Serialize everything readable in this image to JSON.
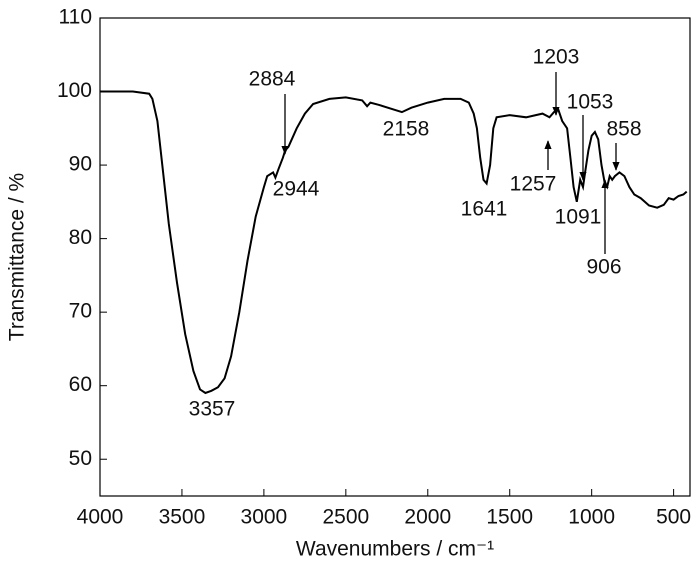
{
  "chart_data": {
    "type": "line",
    "x_label": "Wavenumbers / cm⁻¹",
    "y_label": "Transmittance / %",
    "xlim": [
      4000,
      400
    ],
    "ylim": [
      45,
      110
    ],
    "xticks": [
      4000,
      3500,
      3000,
      2500,
      2000,
      1500,
      1000,
      500
    ],
    "yticks": [
      50,
      60,
      70,
      80,
      90,
      100,
      110
    ],
    "series": [
      {
        "color": "#000000",
        "x": [
          4000,
          3800,
          3700,
          3680,
          3650,
          3620,
          3580,
          3530,
          3480,
          3430,
          3390,
          3357,
          3320,
          3280,
          3240,
          3200,
          3150,
          3100,
          3050,
          3000,
          2980,
          2944,
          2930,
          2910,
          2884,
          2870,
          2850,
          2800,
          2750,
          2700,
          2600,
          2500,
          2400,
          2370,
          2350,
          2300,
          2200,
          2158,
          2100,
          2000,
          1900,
          1800,
          1750,
          1720,
          1700,
          1680,
          1660,
          1641,
          1620,
          1600,
          1580,
          1500,
          1400,
          1300,
          1257,
          1230,
          1203,
          1180,
          1150,
          1130,
          1110,
          1091,
          1070,
          1053,
          1040,
          1020,
          1000,
          980,
          960,
          940,
          920,
          906,
          890,
          875,
          858,
          830,
          800,
          770,
          740,
          700,
          650,
          600,
          560,
          530,
          500,
          470,
          440,
          420
        ],
        "values": [
          100,
          100,
          99.7,
          99,
          96,
          90,
          82,
          74,
          67,
          62,
          59.5,
          59,
          59.3,
          59.8,
          61,
          64,
          70,
          77,
          83,
          87,
          88.5,
          89,
          88.3,
          89.5,
          91,
          92,
          92.5,
          95,
          97,
          98.3,
          99,
          99.2,
          98.8,
          98,
          98.5,
          98.2,
          97.5,
          97.2,
          97.8,
          98.5,
          99,
          99,
          98.5,
          97,
          95,
          91,
          88,
          87.5,
          90,
          95,
          96.5,
          96.8,
          96.5,
          97,
          96.5,
          97.2,
          97.5,
          96,
          95,
          91,
          87,
          85,
          88,
          87,
          89,
          92,
          94,
          94.5,
          93.5,
          90,
          87.5,
          87,
          88.5,
          88,
          88.5,
          89,
          88.5,
          87,
          86,
          85.5,
          84.5,
          84.2,
          84.6,
          85.5,
          85.3,
          85.8,
          86,
          86.4
        ]
      }
    ],
    "annotations": [
      "3357",
      "2944",
      "2884",
      "2158",
      "1641",
      "1257",
      "1203",
      "1091",
      "1053",
      "906",
      "858"
    ]
  }
}
